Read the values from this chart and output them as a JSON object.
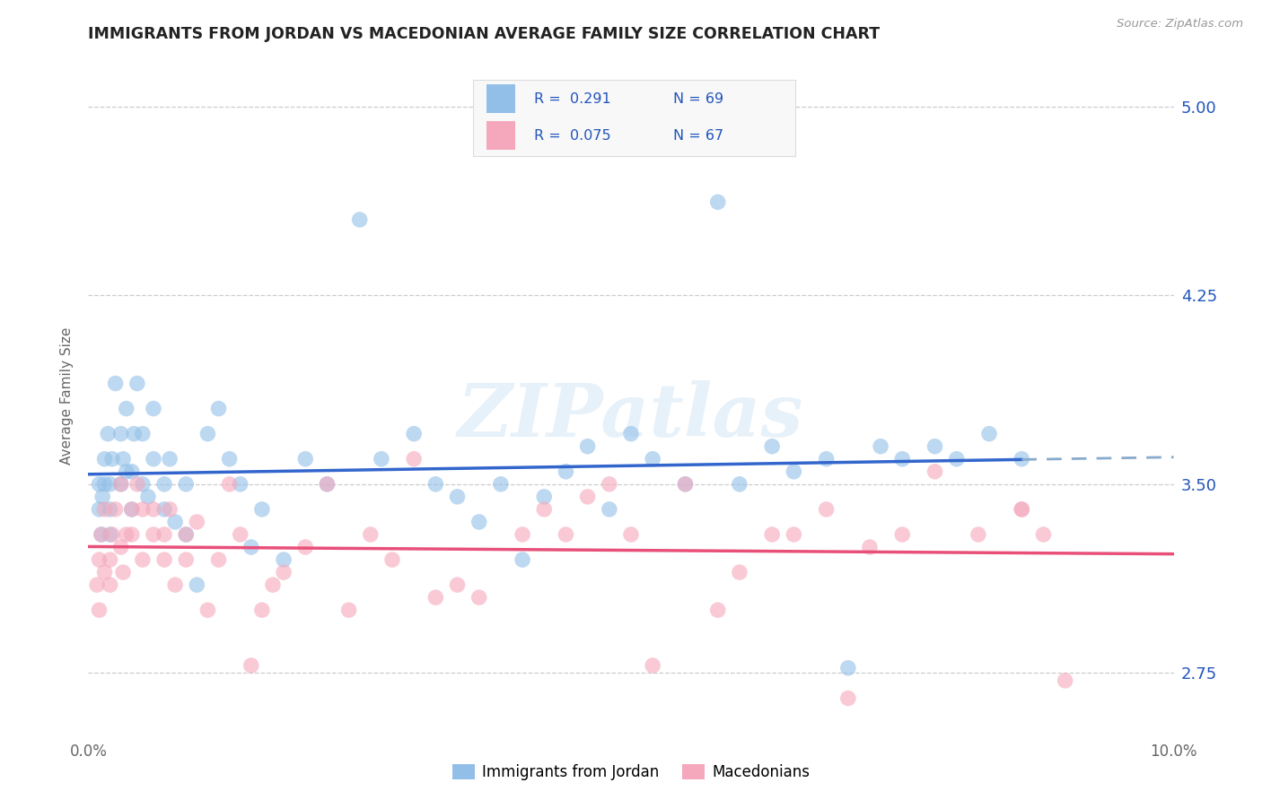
{
  "title": "IMMIGRANTS FROM JORDAN VS MACEDONIAN AVERAGE FAMILY SIZE CORRELATION CHART",
  "source": "Source: ZipAtlas.com",
  "ylabel": "Average Family Size",
  "watermark": "ZIPatlas",
  "legend_label1": "Immigrants from Jordan",
  "legend_label2": "Macedonians",
  "blue_color": "#92bfe8",
  "pink_color": "#f5a8bc",
  "blue_line_color": "#3366cc",
  "pink_line_color": "#e8507a",
  "dashed_line_color": "#88aacc",
  "text_color": "#2255bb",
  "title_color": "#222222",
  "grid_color": "#cccccc",
  "background_color": "#ffffff",
  "xmin": 0.0,
  "xmax": 0.1,
  "ymin": 2.5,
  "ymax": 5.2,
  "y_ticks": [
    2.75,
    3.5,
    4.25,
    5.0
  ],
  "jordan_x": [
    0.001,
    0.001,
    0.0012,
    0.0013,
    0.0015,
    0.0015,
    0.0018,
    0.002,
    0.002,
    0.002,
    0.0022,
    0.0025,
    0.003,
    0.003,
    0.0032,
    0.0035,
    0.0035,
    0.004,
    0.004,
    0.0042,
    0.0045,
    0.005,
    0.005,
    0.0055,
    0.006,
    0.006,
    0.007,
    0.007,
    0.0075,
    0.008,
    0.009,
    0.009,
    0.01,
    0.011,
    0.012,
    0.013,
    0.014,
    0.015,
    0.016,
    0.018,
    0.02,
    0.022,
    0.025,
    0.027,
    0.03,
    0.032,
    0.034,
    0.036,
    0.038,
    0.04,
    0.042,
    0.044,
    0.046,
    0.048,
    0.05,
    0.052,
    0.055,
    0.058,
    0.06,
    0.063,
    0.065,
    0.068,
    0.07,
    0.073,
    0.075,
    0.078,
    0.08,
    0.083,
    0.086
  ],
  "jordan_y": [
    3.4,
    3.5,
    3.3,
    3.45,
    3.6,
    3.5,
    3.7,
    3.4,
    3.5,
    3.3,
    3.6,
    3.9,
    3.7,
    3.5,
    3.6,
    3.8,
    3.55,
    3.4,
    3.55,
    3.7,
    3.9,
    3.7,
    3.5,
    3.45,
    3.6,
    3.8,
    3.5,
    3.4,
    3.6,
    3.35,
    3.5,
    3.3,
    3.1,
    3.7,
    3.8,
    3.6,
    3.5,
    3.25,
    3.4,
    3.2,
    3.6,
    3.5,
    4.55,
    3.6,
    3.7,
    3.5,
    3.45,
    3.35,
    3.5,
    3.2,
    3.45,
    3.55,
    3.65,
    3.4,
    3.7,
    3.6,
    3.5,
    4.62,
    3.5,
    3.65,
    3.55,
    3.6,
    2.77,
    3.65,
    3.6,
    3.65,
    3.6,
    3.7,
    3.6
  ],
  "macedonian_x": [
    0.0008,
    0.001,
    0.001,
    0.0012,
    0.0015,
    0.0015,
    0.002,
    0.002,
    0.0022,
    0.0025,
    0.003,
    0.003,
    0.0032,
    0.0035,
    0.004,
    0.004,
    0.0045,
    0.005,
    0.005,
    0.006,
    0.006,
    0.007,
    0.007,
    0.0075,
    0.008,
    0.009,
    0.009,
    0.01,
    0.011,
    0.012,
    0.013,
    0.014,
    0.015,
    0.016,
    0.017,
    0.018,
    0.02,
    0.022,
    0.024,
    0.026,
    0.028,
    0.03,
    0.032,
    0.034,
    0.036,
    0.04,
    0.042,
    0.044,
    0.046,
    0.048,
    0.05,
    0.052,
    0.055,
    0.058,
    0.06,
    0.063,
    0.065,
    0.068,
    0.07,
    0.072,
    0.075,
    0.078,
    0.082,
    0.086,
    0.088,
    0.09,
    0.086
  ],
  "macedonian_y": [
    3.1,
    3.2,
    3.0,
    3.3,
    3.15,
    3.4,
    3.2,
    3.1,
    3.3,
    3.4,
    3.5,
    3.25,
    3.15,
    3.3,
    3.4,
    3.3,
    3.5,
    3.4,
    3.2,
    3.3,
    3.4,
    3.2,
    3.3,
    3.4,
    3.1,
    3.3,
    3.2,
    3.35,
    3.0,
    3.2,
    3.5,
    3.3,
    2.78,
    3.0,
    3.1,
    3.15,
    3.25,
    3.5,
    3.0,
    3.3,
    3.2,
    3.6,
    3.05,
    3.1,
    3.05,
    3.3,
    3.4,
    3.3,
    3.45,
    3.5,
    3.3,
    2.78,
    3.5,
    3.0,
    3.15,
    3.3,
    3.3,
    3.4,
    2.65,
    3.25,
    3.3,
    3.55,
    3.3,
    3.4,
    3.3,
    2.72,
    3.4
  ]
}
